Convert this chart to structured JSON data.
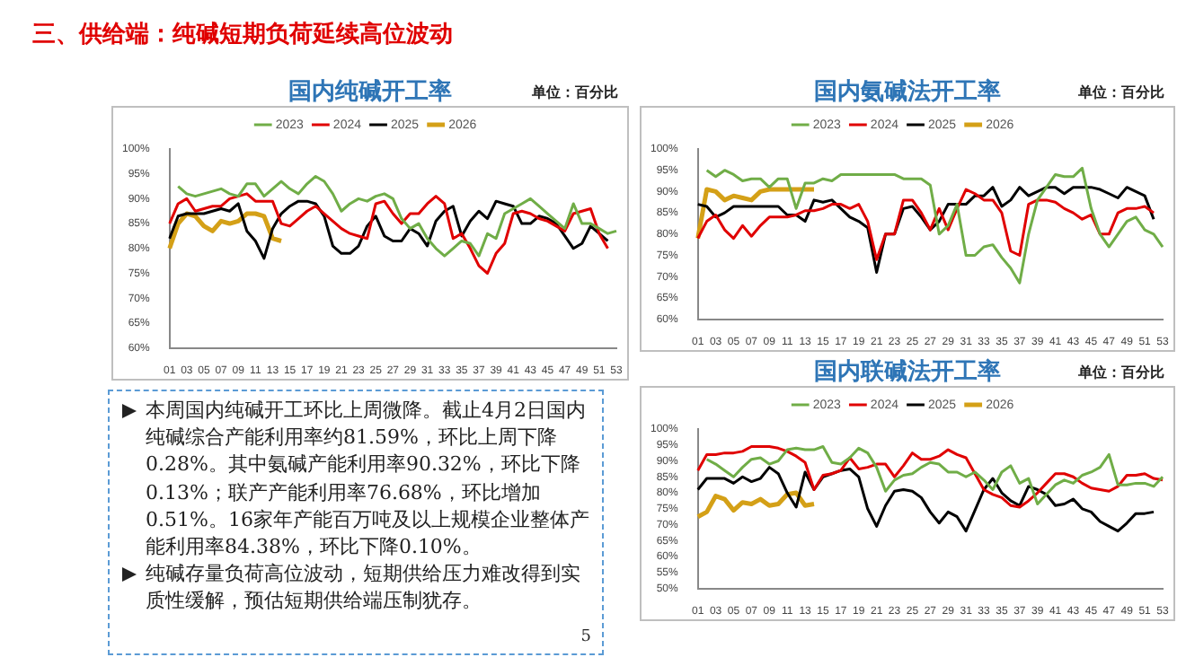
{
  "chart_data": [
    {
      "type": "line",
      "title": "国内纯碱开工率",
      "annotations": [
        "单位：百分比"
      ],
      "categories": [
        "01",
        null,
        "03",
        null,
        "05",
        null,
        "07",
        null,
        "09",
        null,
        "11",
        null,
        "13",
        null,
        "15",
        null,
        "17",
        null,
        "19",
        null,
        "21",
        null,
        "23",
        null,
        "25",
        null,
        "27",
        null,
        "29",
        null,
        "31",
        null,
        "33",
        null,
        "35",
        null,
        "37",
        null,
        "39",
        null,
        "41",
        null,
        "43",
        null,
        "45",
        null,
        "47",
        null,
        "49",
        null,
        "51",
        null,
        "53"
      ],
      "series": [
        {
          "name": "2023",
          "color": "#70ad47",
          "values": [
            null,
            92.5,
            91,
            90.5,
            91,
            91.5,
            92,
            91,
            90.5,
            93,
            93,
            90.5,
            92,
            93.5,
            92,
            91,
            93,
            94.5,
            93.5,
            91,
            87.5,
            89,
            90,
            89.5,
            90.5,
            91,
            90,
            86,
            84,
            85,
            82,
            80,
            78.5,
            80,
            81.5,
            81,
            78.5,
            83,
            82,
            87,
            88,
            89,
            90,
            88.5,
            87,
            85.5,
            84,
            89,
            85,
            85,
            84,
            83,
            83.5
          ]
        },
        {
          "name": "2024",
          "color": "#e00000",
          "values": [
            85,
            89,
            90,
            87.5,
            88,
            88.5,
            88.5,
            90,
            90.5,
            91,
            89.5,
            89.5,
            89.5,
            85,
            84.5,
            86,
            87.5,
            88.5,
            87,
            85.5,
            84,
            83,
            82.5,
            82,
            89,
            89.5,
            87,
            85,
            87,
            87,
            89,
            90.5,
            89,
            82,
            83,
            80,
            76.5,
            75,
            79,
            81,
            87,
            87.5,
            87,
            86,
            85.5,
            84.5,
            83.5,
            87,
            87.5,
            88,
            83,
            80,
            null
          ]
        },
        {
          "name": "2025",
          "color": "#000000",
          "values": [
            82,
            86.5,
            87,
            87,
            87,
            87.5,
            88,
            87.5,
            89,
            83.5,
            81.5,
            78,
            84,
            87,
            88.5,
            89.5,
            89.5,
            89,
            86.5,
            80.5,
            79,
            79,
            80.5,
            84.5,
            86.5,
            82.5,
            81.5,
            81.5,
            84,
            83,
            80.5,
            85.5,
            87.5,
            88.5,
            82.5,
            85.5,
            87.5,
            86,
            89.5,
            89,
            88.5,
            85,
            85,
            86.5,
            86,
            85,
            82.5,
            80,
            81,
            84.5,
            83,
            81.5,
            null
          ]
        },
        {
          "name": "2026",
          "color": "#d4a017",
          "values": [
            80,
            85,
            87,
            86.5,
            84.5,
            83.5,
            85.5,
            85,
            85.5,
            87,
            87,
            86.5,
            82,
            81.5,
            null,
            null,
            null,
            null,
            null,
            null,
            null,
            null,
            null,
            null,
            null,
            null,
            null,
            null,
            null,
            null,
            null,
            null,
            null,
            null,
            null,
            null,
            null,
            null,
            null,
            null,
            null,
            null,
            null,
            null,
            null,
            null,
            null,
            null,
            null,
            null,
            null,
            null,
            null
          ]
        }
      ],
      "ylim": [
        60,
        100
      ],
      "yticks": [
        {
          "value": 60,
          "label": "60%"
        },
        {
          "value": 65,
          "label": "65%"
        },
        {
          "value": 70,
          "label": "70%"
        },
        {
          "value": 75,
          "label": "75%"
        },
        {
          "value": 80,
          "label": "80%"
        },
        {
          "value": 85,
          "label": "85%"
        },
        {
          "value": 90,
          "label": "90%"
        },
        {
          "value": 95,
          "label": "95%"
        },
        {
          "value": 100,
          "label": "100%"
        }
      ],
      "legend": "top",
      "marker": "none"
    },
    {
      "type": "line",
      "title": "国内氨碱法开工率",
      "annotations": [
        "单位：百分比"
      ],
      "categories": [
        "01",
        null,
        "03",
        null,
        "05",
        null,
        "07",
        null,
        "09",
        null,
        "11",
        null,
        "13",
        null,
        "15",
        null,
        "17",
        null,
        "19",
        null,
        "21",
        null,
        "23",
        null,
        "25",
        null,
        "27",
        null,
        "29",
        null,
        "31",
        null,
        "33",
        null,
        "35",
        null,
        "37",
        null,
        "39",
        null,
        "41",
        null,
        "43",
        null,
        "45",
        null,
        "47",
        null,
        "49",
        null,
        "51",
        null,
        "53"
      ],
      "series": [
        {
          "name": "2023",
          "color": "#70ad47",
          "values": [
            null,
            95,
            93.5,
            95,
            94,
            92.5,
            93,
            93,
            91,
            93,
            93,
            86,
            92,
            92,
            93,
            92.5,
            94,
            94,
            94,
            94,
            94,
            94,
            94,
            93,
            93,
            93,
            91.5,
            80,
            82,
            87,
            75,
            75,
            77,
            77.5,
            74.5,
            72,
            68.5,
            80,
            88,
            91,
            94,
            93.5,
            93.5,
            95.5,
            86,
            80,
            77,
            80,
            83,
            84,
            81,
            80,
            77
          ]
        },
        {
          "name": "2024",
          "color": "#e00000",
          "values": [
            79,
            83,
            84.5,
            81,
            79,
            82,
            79.5,
            82,
            84,
            84,
            84,
            84.5,
            85.5,
            85.5,
            86,
            87,
            87,
            86,
            87,
            83,
            74,
            80,
            80,
            88,
            88,
            85,
            81,
            86,
            81,
            86,
            90.5,
            89.5,
            88,
            88,
            85,
            76,
            75,
            87,
            88,
            88,
            87.5,
            86,
            85,
            83.5,
            84.5,
            80,
            80,
            85,
            86,
            86,
            86.5,
            85,
            null
          ]
        },
        {
          "name": "2025",
          "color": "#000000",
          "values": [
            87,
            86.5,
            84,
            85,
            86.5,
            86.5,
            86.5,
            86.5,
            86.5,
            86.5,
            84.5,
            84.5,
            83,
            88,
            87.5,
            88,
            86,
            84,
            83,
            81.5,
            71,
            80,
            80,
            86,
            86.5,
            84,
            81,
            83,
            87,
            87,
            87,
            89,
            89,
            91,
            86.5,
            88,
            91,
            89,
            90,
            91,
            91,
            89.5,
            91,
            91,
            91,
            90.5,
            89.5,
            88.5,
            91,
            90,
            89,
            83.5,
            null
          ]
        },
        {
          "name": "2026",
          "color": "#d4a017",
          "values": [
            79,
            90.5,
            90,
            88,
            89,
            88.5,
            88,
            90,
            90.5,
            90.5,
            90.5,
            90.5,
            90.5,
            90.5,
            null,
            null,
            null,
            null,
            null,
            null,
            null,
            null,
            null,
            null,
            null,
            null,
            null,
            null,
            null,
            null,
            null,
            null,
            null,
            null,
            null,
            null,
            null,
            null,
            null,
            null,
            null,
            null,
            null,
            null,
            null,
            null,
            null,
            null,
            null,
            null,
            null,
            null,
            null
          ]
        }
      ],
      "ylim": [
        60,
        100
      ],
      "yticks": [
        {
          "value": 60,
          "label": "60%"
        },
        {
          "value": 65,
          "label": "65%"
        },
        {
          "value": 70,
          "label": "70%"
        },
        {
          "value": 75,
          "label": "75%"
        },
        {
          "value": 80,
          "label": "80%"
        },
        {
          "value": 85,
          "label": "85%"
        },
        {
          "value": 90,
          "label": "90%"
        },
        {
          "value": 95,
          "label": "95%"
        },
        {
          "value": 100,
          "label": "100%"
        }
      ],
      "legend": "top",
      "marker": "none"
    },
    {
      "type": "line",
      "title": "国内联碱法开工率",
      "annotations": [
        "单位：百分比"
      ],
      "categories": [
        "01",
        null,
        "03",
        null,
        "05",
        null,
        "07",
        null,
        "09",
        null,
        "11",
        null,
        "13",
        null,
        "15",
        null,
        "17",
        null,
        "19",
        null,
        "21",
        null,
        "23",
        null,
        "25",
        null,
        "27",
        null,
        "29",
        null,
        "31",
        null,
        "33",
        null,
        "35",
        null,
        "37",
        null,
        "39",
        null,
        "41",
        null,
        "43",
        null,
        "45",
        null,
        "47",
        null,
        "49",
        null,
        "51",
        null,
        "53"
      ],
      "series": [
        {
          "name": "2023",
          "color": "#70ad47",
          "values": [
            null,
            90.5,
            89,
            87,
            85,
            88,
            90.5,
            91,
            89,
            90,
            93.5,
            94,
            93.5,
            93.5,
            94.5,
            89.5,
            89,
            91,
            94,
            92.5,
            88,
            80.5,
            84,
            85.5,
            86,
            88,
            89.5,
            89,
            86.5,
            86.5,
            85,
            86.5,
            84,
            81,
            86.5,
            88.5,
            83,
            84.5,
            76.5,
            79.5,
            82.5,
            84,
            83,
            85.5,
            86.5,
            88,
            92,
            82.5,
            82.5,
            83,
            83,
            82,
            85
          ]
        },
        {
          "name": "2024",
          "color": "#e00000",
          "values": [
            87,
            92,
            92,
            92.5,
            92.5,
            93,
            94.5,
            94.5,
            94.5,
            94,
            93,
            91.5,
            89.5,
            81,
            85.5,
            86,
            87,
            91,
            87.5,
            88,
            89,
            89,
            85,
            88.5,
            92.5,
            90.5,
            90.5,
            91.5,
            93.5,
            92,
            91,
            86,
            81,
            79.5,
            78.5,
            76,
            75.5,
            77.5,
            80,
            83,
            86,
            86,
            85,
            83,
            81.5,
            81,
            80.5,
            82,
            85.5,
            85.5,
            86,
            84.5,
            84
          ]
        },
        {
          "name": "2025",
          "color": "#000000",
          "values": [
            81,
            84.5,
            84.5,
            84.5,
            83,
            85,
            83.5,
            84.5,
            88,
            86,
            80,
            75.5,
            86.5,
            81,
            85,
            86,
            87,
            87.5,
            85,
            75,
            69.5,
            76,
            80.5,
            81,
            80.5,
            78.5,
            74,
            70.5,
            74,
            72.5,
            68,
            74.5,
            81,
            84.5,
            80,
            77.5,
            76,
            82,
            81,
            79.5,
            76,
            76.5,
            78,
            75,
            74,
            71,
            69.5,
            68,
            70.5,
            73.5,
            73.5,
            74,
            null
          ]
        },
        {
          "name": "2026",
          "color": "#d4a017",
          "values": [
            72.5,
            74,
            79,
            78,
            74.5,
            77,
            76.5,
            78,
            76,
            76.5,
            79.5,
            80,
            76,
            76.5,
            null,
            null,
            null,
            null,
            null,
            null,
            null,
            null,
            null,
            null,
            null,
            null,
            null,
            null,
            null,
            null,
            null,
            null,
            null,
            null,
            null,
            null,
            null,
            null,
            null,
            null,
            null,
            null,
            null,
            null,
            null,
            null,
            null,
            null,
            null,
            null,
            null,
            null,
            null
          ]
        }
      ],
      "ylim": [
        50,
        100
      ],
      "yticks": [
        {
          "value": 50,
          "label": "50%"
        },
        {
          "value": 55,
          "label": "55%"
        },
        {
          "value": 60,
          "label": "60%"
        },
        {
          "value": 65,
          "label": "65%"
        },
        {
          "value": 70,
          "label": "70%"
        },
        {
          "value": 75,
          "label": "75%"
        },
        {
          "value": 80,
          "label": "80%"
        },
        {
          "value": 85,
          "label": "85%"
        },
        {
          "value": 90,
          "label": "90%"
        },
        {
          "value": 95,
          "label": "95%"
        },
        {
          "value": 100,
          "label": "100%"
        }
      ],
      "legend": "top",
      "marker": "none"
    },
    {
      "type": "other",
      "title": "三、供给端：纯碱短期负荷延续高位波动",
      "annotations": [
        "本周国内纯碱开工环比上周微降。截止4月2日国内纯碱综合产能利用率约81.59%，环比上周下降0.28%。其中氨碱产能利用率90.32%，环比下降0.13%；联产产能利用率76.68%，环比增加0.51%。16家年产能百万吨及以上规模企业整体产能利用率84.38%，环比下降0.10%。",
        "纯碱存量负荷高位波动，短期供给压力难改得到实质性缓解，预估短期供给端压制犹存。",
        "5"
      ]
    }
  ]
}
